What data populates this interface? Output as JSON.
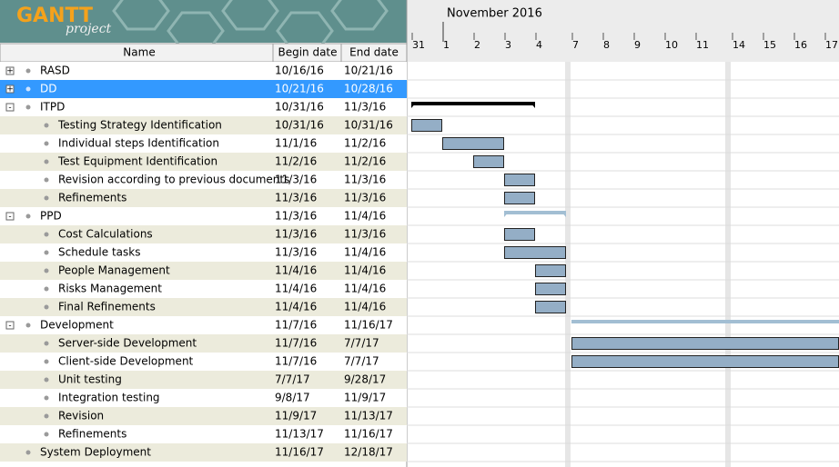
{
  "logo": {
    "title": "GANTT",
    "subtitle": "project"
  },
  "table": {
    "columns": [
      "Name",
      "Begin date",
      "End date"
    ],
    "rows": [
      {
        "name": "RASD",
        "begin": "10/16/16",
        "end": "10/21/16",
        "level": 0,
        "expander": "+"
      },
      {
        "name": "DD",
        "begin": "10/21/16",
        "end": "10/28/16",
        "level": 0,
        "expander": "+",
        "selected": true
      },
      {
        "name": "ITPD",
        "begin": "10/31/16",
        "end": "11/3/16",
        "level": 0,
        "expander": "-",
        "bar_color": "#000000"
      },
      {
        "name": "Testing Strategy Identification",
        "begin": "10/31/16",
        "end": "10/31/16",
        "level": 1
      },
      {
        "name": "Individual steps Identification",
        "begin": "11/1/16",
        "end": "11/2/16",
        "level": 1
      },
      {
        "name": "Test Equipment Identification",
        "begin": "11/2/16",
        "end": "11/2/16",
        "level": 1
      },
      {
        "name": "Revision according to previous documents",
        "begin": "11/3/16",
        "end": "11/3/16",
        "level": 1
      },
      {
        "name": "Refinements",
        "begin": "11/3/16",
        "end": "11/3/16",
        "level": 1
      },
      {
        "name": "PPD",
        "begin": "11/3/16",
        "end": "11/4/16",
        "level": 0,
        "expander": "-",
        "bar_color": "#a2bed3"
      },
      {
        "name": "Cost Calculations",
        "begin": "11/3/16",
        "end": "11/3/16",
        "level": 1
      },
      {
        "name": "Schedule tasks",
        "begin": "11/3/16",
        "end": "11/4/16",
        "level": 1
      },
      {
        "name": "People Management",
        "begin": "11/4/16",
        "end": "11/4/16",
        "level": 1
      },
      {
        "name": "Risks Management",
        "begin": "11/4/16",
        "end": "11/4/16",
        "level": 1
      },
      {
        "name": "Final Refinements",
        "begin": "11/4/16",
        "end": "11/4/16",
        "level": 1
      },
      {
        "name": "Development",
        "begin": "11/7/16",
        "end": "11/16/17",
        "level": 0,
        "expander": "-",
        "bar_color": "#a2bed3"
      },
      {
        "name": "Server-side Development",
        "begin": "11/7/16",
        "end": "7/7/17",
        "level": 1
      },
      {
        "name": "Client-side Development",
        "begin": "11/7/16",
        "end": "7/7/17",
        "level": 1
      },
      {
        "name": "Unit testing",
        "begin": "7/7/17",
        "end": "9/28/17",
        "level": 1
      },
      {
        "name": "Integration testing",
        "begin": "9/8/17",
        "end": "11/9/17",
        "level": 1
      },
      {
        "name": "Revision",
        "begin": "11/9/17",
        "end": "11/13/17",
        "level": 1
      },
      {
        "name": "Refinements",
        "begin": "11/13/17",
        "end": "11/16/17",
        "level": 1
      },
      {
        "name": "System Deployment",
        "begin": "11/16/17",
        "end": "12/18/17",
        "level": 0
      }
    ]
  },
  "timeline": {
    "month": "November 2016",
    "days": [
      "31",
      "1",
      "2",
      "3",
      "4",
      "7",
      "8",
      "9",
      "10",
      "11",
      "14",
      "15",
      "16",
      "17"
    ],
    "task_color": "#94aec6"
  }
}
